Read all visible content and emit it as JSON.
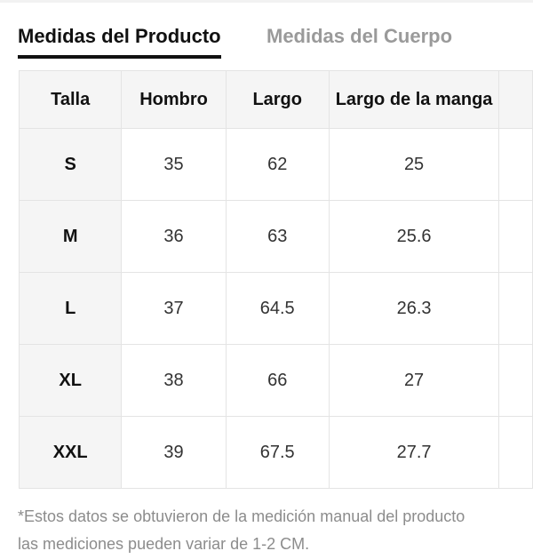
{
  "tabs": {
    "product": "Medidas del Producto",
    "body": "Medidas del Cuerpo"
  },
  "table": {
    "headers": [
      "Talla",
      "Hombro",
      "Largo",
      "Largo de la manga"
    ],
    "rows": [
      [
        "S",
        "35",
        "62",
        "25"
      ],
      [
        "M",
        "36",
        "63",
        "25.6"
      ],
      [
        "L",
        "37",
        "64.5",
        "26.3"
      ],
      [
        "XL",
        "38",
        "66",
        "27"
      ],
      [
        "XXL",
        "39",
        "67.5",
        "27.7"
      ]
    ]
  },
  "note": {
    "line1": "*Estos datos se obtuvieron de la medición manual del producto",
    "line2": "las mediciones pueden variar de 1-2 CM."
  }
}
